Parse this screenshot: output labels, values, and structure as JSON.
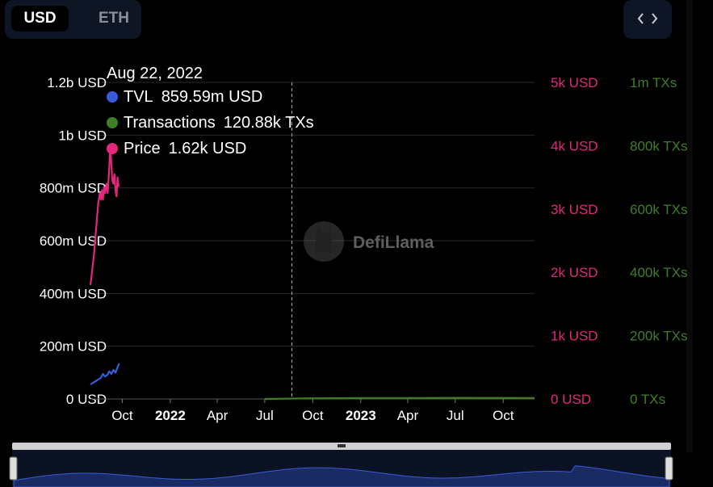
{
  "currency_toggle": {
    "active": "USD",
    "inactive": "ETH"
  },
  "embed_button": {
    "label": "<>"
  },
  "watermark": "DefiLlama",
  "tooltip": {
    "date": "Aug 22, 2022",
    "items": [
      {
        "name": "TVL",
        "value": "859.59m USD",
        "color": "#3a5bd9"
      },
      {
        "name": "Transactions",
        "value": "120.88k TXs",
        "color": "#3f7e27"
      },
      {
        "name": "Price",
        "value": "1.62k USD",
        "color": "#e3287b"
      }
    ]
  },
  "chart_data": {
    "type": "line",
    "x_axis": {
      "ticks": [
        "Oct",
        "2022",
        "Apr",
        "Jul",
        "Oct",
        "2023",
        "Apr",
        "Jul",
        "Oct"
      ],
      "bold_ticks": [
        "2022",
        "2023"
      ]
    },
    "y_axes": [
      {
        "name": "TVL",
        "unit": "USD",
        "range": [
          0,
          1200000000
        ],
        "ticks": [
          "0 USD",
          "200m USD",
          "400m USD",
          "600m USD",
          "800m USD",
          "1b USD",
          "1.2b USD"
        ],
        "color": "#ffffff"
      },
      {
        "name": "Price",
        "unit": "USD",
        "range": [
          0,
          5000
        ],
        "ticks": [
          "0 USD",
          "1k USD",
          "2k USD",
          "3k USD",
          "4k USD",
          "5k USD"
        ],
        "color": "#e3287b"
      },
      {
        "name": "Transactions",
        "unit": "TXs",
        "range": [
          0,
          1000000
        ],
        "ticks": [
          "0 TXs",
          "200k TXs",
          "400k TXs",
          "600k TXs",
          "800k TXs",
          "1m TXs"
        ],
        "color": "#3f7e27"
      }
    ],
    "grid": true,
    "crosshair_date": "Aug 22, 2022",
    "series": [
      {
        "name": "TVL",
        "axis": "TVL",
        "color": "#3a5bd9",
        "x": [
          "2021-08-01",
          "2021-08-05",
          "2021-08-09",
          "2021-08-13",
          "2021-08-17",
          "2021-08-21",
          "2021-08-25",
          "2021-08-29",
          "2021-09-02",
          "2021-09-06",
          "2021-09-10",
          "2021-09-14",
          "2021-09-18",
          "2021-09-22",
          "2021-09-25"
        ],
        "y": [
          55000000,
          60000000,
          65000000,
          70000000,
          75000000,
          80000000,
          95000000,
          85000000,
          90000000,
          105000000,
          95000000,
          110000000,
          100000000,
          120000000,
          135000000
        ]
      },
      {
        "name": "Price",
        "axis": "Price",
        "color": "#e3287b",
        "x": [
          "2021-08-01",
          "2021-08-04",
          "2021-08-08",
          "2021-08-12",
          "2021-08-16",
          "2021-08-19",
          "2021-08-21",
          "2021-08-23",
          "2021-08-25",
          "2021-08-27",
          "2021-08-29",
          "2021-09-01",
          "2021-09-03",
          "2021-09-05",
          "2021-09-07",
          "2021-09-08",
          "2021-09-10",
          "2021-09-12",
          "2021-09-14",
          "2021-09-16",
          "2021-09-18",
          "2021-09-20",
          "2021-09-22",
          "2021-09-24"
        ],
        "y": [
          1800,
          2000,
          2300,
          2700,
          3100,
          3250,
          3150,
          3300,
          3150,
          3350,
          3250,
          3400,
          3250,
          3500,
          3800,
          4000,
          3700,
          3450,
          3400,
          3550,
          3300,
          3200,
          3500,
          3350
        ]
      },
      {
        "name": "Transactions",
        "axis": "Transactions",
        "color": "#3f7e27",
        "x": [
          "2022-07-01",
          "2022-10-01",
          "2023-01-01",
          "2023-04-01",
          "2023-07-01",
          "2023-11-30"
        ],
        "y": [
          0,
          2000,
          3000,
          3000,
          3500,
          3000
        ]
      }
    ]
  }
}
